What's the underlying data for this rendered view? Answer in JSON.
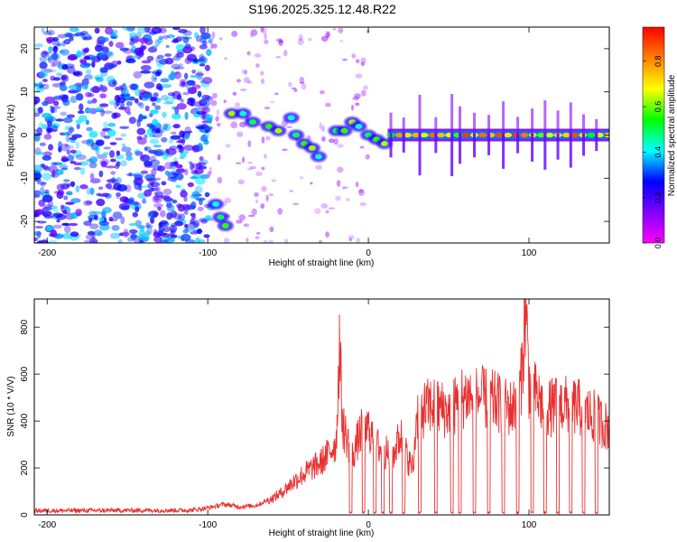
{
  "title": "S196.2025.325.12.48.R22",
  "chart_data": [
    {
      "type": "heatmap",
      "xlabel": "Height of straight line (km)",
      "ylabel": "Frequency (Hz)",
      "xlim": [
        -208,
        150
      ],
      "ylim": [
        -25,
        25
      ],
      "x_ticks": [
        -200,
        -100,
        0,
        100
      ],
      "y_ticks": [
        -20,
        -10,
        0,
        10,
        20
      ],
      "colorbar": {
        "label": "Normalized spectral amplitude",
        "range": [
          0.0,
          0.95
        ],
        "ticks": [
          0.0,
          0.2,
          0.4,
          0.6,
          0.8
        ],
        "colormap": [
          "#ff00ff",
          "#8000ff",
          "#0000ff",
          "#00ffff",
          "#00ff00",
          "#ffff00",
          "#ff8000",
          "#ff0000"
        ]
      },
      "ridge": [
        {
          "x": -95,
          "f": -16
        },
        {
          "x": -92,
          "f": -19
        },
        {
          "x": -89,
          "f": -21
        },
        {
          "x": -85,
          "f": 5
        },
        {
          "x": -78,
          "f": 5
        },
        {
          "x": -72,
          "f": 3
        },
        {
          "x": -62,
          "f": 2
        },
        {
          "x": -56,
          "f": 1
        },
        {
          "x": -48,
          "f": 4
        },
        {
          "x": -45,
          "f": 0
        },
        {
          "x": -40,
          "f": -2
        },
        {
          "x": -35,
          "f": -3
        },
        {
          "x": -31,
          "f": -5
        },
        {
          "x": -20,
          "f": 1
        },
        {
          "x": -15,
          "f": 1
        },
        {
          "x": -10,
          "f": 3
        },
        {
          "x": -6,
          "f": 2
        },
        {
          "x": 0,
          "f": 0
        },
        {
          "x": 5,
          "f": -1
        },
        {
          "x": 10,
          "f": -2
        }
      ],
      "carrier": {
        "x_start": 12,
        "x_end": 150,
        "f": 0,
        "peak_amplitude": 0.9
      }
    },
    {
      "type": "line",
      "xlabel": "Height of straight line (km)",
      "ylabel": "SNR (10 * V/V)",
      "xlim": [
        -208,
        150
      ],
      "ylim": [
        0,
        920
      ],
      "x_ticks": [
        -200,
        -100,
        0,
        100
      ],
      "y_ticks": [
        0,
        200,
        400,
        600,
        800
      ],
      "color": "#e83030",
      "envelope": [
        {
          "x": -208,
          "snr": 18
        },
        {
          "x": -110,
          "snr": 20
        },
        {
          "x": -100,
          "snr": 30
        },
        {
          "x": -90,
          "snr": 45
        },
        {
          "x": -80,
          "snr": 35
        },
        {
          "x": -70,
          "snr": 40
        },
        {
          "x": -60,
          "snr": 70
        },
        {
          "x": -55,
          "snr": 90
        },
        {
          "x": -45,
          "snr": 150
        },
        {
          "x": -35,
          "snr": 200
        },
        {
          "x": -30,
          "snr": 220
        },
        {
          "x": -25,
          "snr": 260
        },
        {
          "x": -20,
          "snr": 310
        },
        {
          "x": -18,
          "snr": 730
        },
        {
          "x": -16,
          "snr": 380
        },
        {
          "x": -12,
          "snr": 300
        },
        {
          "x": -10,
          "snr": 250
        },
        {
          "x": -5,
          "snr": 350
        },
        {
          "x": 0,
          "snr": 370
        },
        {
          "x": 5,
          "snr": 300
        },
        {
          "x": 10,
          "snr": 270
        },
        {
          "x": 15,
          "snr": 250
        },
        {
          "x": 20,
          "snr": 340
        },
        {
          "x": 25,
          "snr": 230
        },
        {
          "x": 28,
          "snr": 200
        },
        {
          "x": 30,
          "snr": 430
        },
        {
          "x": 40,
          "snr": 470
        },
        {
          "x": 50,
          "snr": 440
        },
        {
          "x": 60,
          "snr": 510
        },
        {
          "x": 70,
          "snr": 500
        },
        {
          "x": 80,
          "snr": 480
        },
        {
          "x": 90,
          "snr": 450
        },
        {
          "x": 95,
          "snr": 560
        },
        {
          "x": 98,
          "snr": 900
        },
        {
          "x": 100,
          "snr": 560
        },
        {
          "x": 110,
          "snr": 450
        },
        {
          "x": 120,
          "snr": 470
        },
        {
          "x": 130,
          "snr": 460
        },
        {
          "x": 140,
          "snr": 420
        },
        {
          "x": 150,
          "snr": 370
        }
      ],
      "dropouts": [
        -11,
        -3,
        4,
        9,
        14,
        22,
        32,
        42,
        52,
        57,
        66,
        75,
        84,
        93,
        102,
        110,
        118,
        126,
        134,
        142
      ]
    }
  ]
}
